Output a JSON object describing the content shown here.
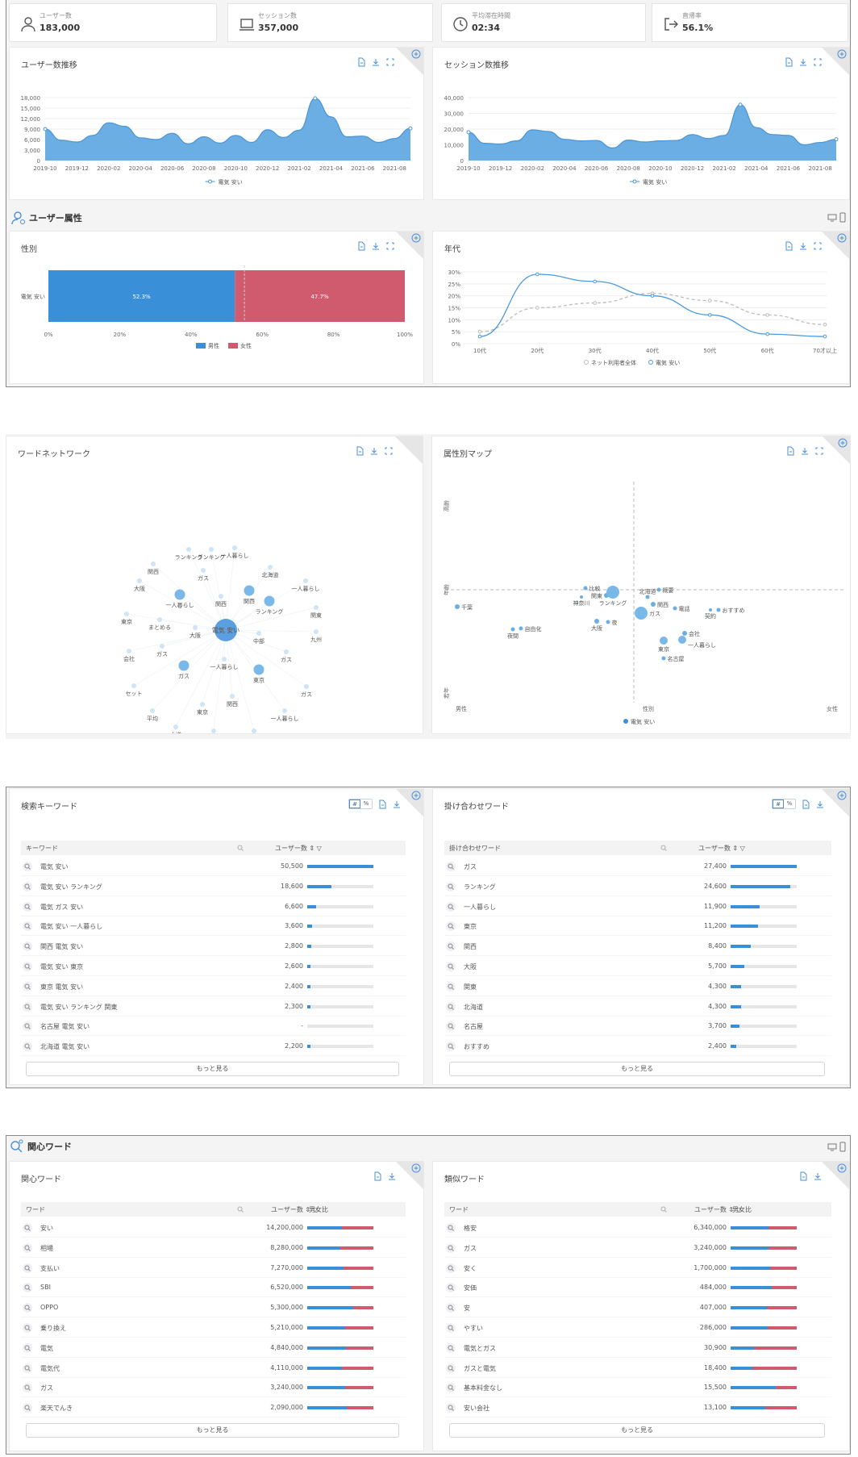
{
  "stats": [
    {
      "label": "ユーザー数",
      "value": "183,000",
      "icon": "user-icon"
    },
    {
      "label": "セッション数",
      "value": "357,000",
      "icon": "laptop-icon"
    },
    {
      "label": "平均滞在時間",
      "value": "02:34",
      "icon": "clock-icon"
    },
    {
      "label": "直帰率",
      "value": "56.1%",
      "icon": "exit-icon"
    }
  ],
  "users_trend": {
    "title": "ユーザー数推移",
    "chart_data": {
      "type": "area",
      "x": [
        "2019-10",
        "2019-11",
        "2019-12",
        "2020-01",
        "2020-02",
        "2020-03",
        "2020-04",
        "2020-05",
        "2020-06",
        "2020-07",
        "2020-08",
        "2020-09",
        "2020-10",
        "2020-11",
        "2020-12",
        "2021-01",
        "2021-02",
        "2021-03",
        "2021-04",
        "2021-05",
        "2021-06",
        "2021-07",
        "2021-08",
        "2021-09"
      ],
      "series": [
        {
          "name": "電気 安い",
          "values": [
            9000,
            5800,
            5300,
            7200,
            10800,
            9800,
            6500,
            6000,
            7800,
            4800,
            6800,
            5000,
            7200,
            5200,
            8800,
            6600,
            8700,
            17800,
            12500,
            6800,
            7000,
            5200,
            6300,
            9200
          ]
        }
      ],
      "ylim": [
        0,
        18000
      ],
      "yticks": [
        "0",
        "3,000",
        "6,000",
        "9,000",
        "12,000",
        "15,000",
        "18,000"
      ],
      "xticks": [
        "2019-10",
        "2019-12",
        "2020-02",
        "2020-04",
        "2020-06",
        "2020-08",
        "2020-10",
        "2020-12",
        "2021-02",
        "2021-04",
        "2021-06",
        "2021-08"
      ]
    }
  },
  "sessions_trend": {
    "title": "セッション数推移",
    "chart_data": {
      "type": "area",
      "x": [
        "2019-10",
        "2019-11",
        "2019-12",
        "2020-01",
        "2020-02",
        "2020-03",
        "2020-04",
        "2020-05",
        "2020-06",
        "2020-07",
        "2020-08",
        "2020-09",
        "2020-10",
        "2020-11",
        "2020-12",
        "2021-01",
        "2021-02",
        "2021-03",
        "2021-04",
        "2021-05",
        "2021-06",
        "2021-07",
        "2021-08",
        "2021-09"
      ],
      "series": [
        {
          "name": "電気 安い",
          "values": [
            18000,
            11000,
            10500,
            12500,
            19500,
            18500,
            13500,
            12500,
            12800,
            8000,
            13000,
            11800,
            12500,
            12800,
            16500,
            14000,
            16000,
            35500,
            21000,
            16500,
            16000,
            10000,
            11500,
            13500
          ]
        }
      ],
      "ylim": [
        0,
        40000
      ],
      "yticks": [
        "0",
        "10,000",
        "20,000",
        "30,000",
        "40,000"
      ],
      "xticks": [
        "2019-10",
        "2019-12",
        "2020-02",
        "2020-04",
        "2020-06",
        "2020-08",
        "2020-10",
        "2020-12",
        "2021-02",
        "2021-04",
        "2021-06",
        "2021-08"
      ]
    }
  },
  "attr_header": "ユーザー属性",
  "gender": {
    "title": "性別",
    "chart_data": {
      "type": "bar",
      "categories": [
        "電気 安い"
      ],
      "series": [
        {
          "name": "男性",
          "values": [
            52.3
          ]
        },
        {
          "name": "女性",
          "values": [
            47.7
          ]
        }
      ],
      "labels": [
        "52.3%",
        "47.7%"
      ],
      "xticks": [
        "0%",
        "20%",
        "40%",
        "60%",
        "80%",
        "100%"
      ],
      "colors": [
        "#3a8fd9",
        "#d05a6e"
      ]
    }
  },
  "age": {
    "title": "年代",
    "chart_data": {
      "type": "line",
      "categories": [
        "10代",
        "20代",
        "30代",
        "40代",
        "50代",
        "60代",
        "70才以上"
      ],
      "series": [
        {
          "name": "ネット利用者全体",
          "values": [
            5,
            15,
            17,
            21,
            18,
            12,
            8
          ]
        },
        {
          "name": "電気 安い",
          "values": [
            3,
            29,
            26,
            20,
            12,
            4,
            3
          ]
        }
      ],
      "ylim": [
        0,
        30
      ],
      "yticks": [
        "0%",
        "5%",
        "10%",
        "15%",
        "20%",
        "25%",
        "30%"
      ]
    }
  },
  "word_network": {
    "title": "ワードネットワーク",
    "center": "電気 安い",
    "nodes": [
      {
        "t": "ランキング",
        "s": 1
      },
      {
        "t": "ランキング",
        "s": 1
      },
      {
        "t": "一人暮らし",
        "s": 1
      },
      {
        "t": "関西",
        "s": 1
      },
      {
        "t": "ガス",
        "s": 1
      },
      {
        "t": "北海道",
        "s": 1
      },
      {
        "t": "大阪",
        "s": 1
      },
      {
        "t": "一人暮らし",
        "s": 1
      },
      {
        "t": "一人暮らし",
        "s": 3
      },
      {
        "t": "関西",
        "s": 1
      },
      {
        "t": "関西",
        "s": 3
      },
      {
        "t": "ランキング",
        "s": 3
      },
      {
        "t": "関東",
        "s": 1
      },
      {
        "t": "東京",
        "s": 1
      },
      {
        "t": "まとめる",
        "s": 1
      },
      {
        "t": "大阪",
        "s": 1
      },
      {
        "t": "九州",
        "s": 1
      },
      {
        "t": "中部",
        "s": 1
      },
      {
        "t": "会社",
        "s": 1
      },
      {
        "t": "ガス",
        "s": 1
      },
      {
        "t": "ガス",
        "s": 1
      },
      {
        "t": "ガス",
        "s": 3
      },
      {
        "t": "一人暮らし",
        "s": 1
      },
      {
        "t": "東京",
        "s": 3
      },
      {
        "t": "ガス",
        "s": 1
      },
      {
        "t": "セット",
        "s": 1
      },
      {
        "t": "関西",
        "s": 1
      },
      {
        "t": "平均",
        "s": 1
      },
      {
        "t": "東京",
        "s": 1
      },
      {
        "t": "一人暮らし",
        "s": 1
      },
      {
        "t": "水道",
        "s": 1
      },
      {
        "t": "名古屋",
        "s": 1
      },
      {
        "t": "水道",
        "s": 1
      }
    ]
  },
  "attr_map": {
    "title": "属性別マップ",
    "y_top": "高齢",
    "y_mid": "年齢",
    "y_bottom": "若年",
    "x_left": "男性",
    "x_mid": "性別",
    "x_right": "女性",
    "legend": "電気 安い",
    "points": [
      {
        "t": "千葉"
      },
      {
        "t": "比較"
      },
      {
        "t": "関東"
      },
      {
        "t": "神奈川"
      },
      {
        "t": "ランキング"
      },
      {
        "t": "北海道"
      },
      {
        "t": "概要"
      },
      {
        "t": "関西"
      },
      {
        "t": "ガス"
      },
      {
        "t": "電話"
      },
      {
        "t": "おすすめ"
      },
      {
        "t": "契約"
      },
      {
        "t": "大阪"
      },
      {
        "t": "夜"
      },
      {
        "t": "自由化"
      },
      {
        "t": "夜間"
      },
      {
        "t": "会社"
      },
      {
        "t": "東京"
      },
      {
        "t": "一人暮らし"
      },
      {
        "t": "名古屋"
      }
    ]
  },
  "search_kw": {
    "title": "検索キーワード",
    "toggle": [
      "#",
      "%"
    ],
    "col_word": "キーワード",
    "col_users": "ユーザー数",
    "more": "もっと見る",
    "rows": [
      {
        "w": "電気 安い",
        "n": "50,500",
        "v": 50500
      },
      {
        "w": "電気 安い ランキング",
        "n": "18,600",
        "v": 18600
      },
      {
        "w": "電気 ガス 安い",
        "n": "6,600",
        "v": 6600
      },
      {
        "w": "電気 安い 一人暮らし",
        "n": "3,600",
        "v": 3600
      },
      {
        "w": "関西 電気 安い",
        "n": "2,800",
        "v": 2800
      },
      {
        "w": "電気 安い 東京",
        "n": "2,600",
        "v": 2600
      },
      {
        "w": "東京 電気 安い",
        "n": "2,400",
        "v": 2400
      },
      {
        "w": "電気 安い ランキング 関東",
        "n": "2,300",
        "v": 2300
      },
      {
        "w": "名古屋 電気 安い",
        "n": "-",
        "v": 0
      },
      {
        "w": "北海道 電気 安い",
        "n": "2,200",
        "v": 2200
      }
    ]
  },
  "combo_kw": {
    "title": "掛け合わせワード",
    "toggle": [
      "#",
      "%"
    ],
    "col_word": "掛け合わせワード",
    "col_users": "ユーザー数",
    "more": "もっと見る",
    "rows": [
      {
        "w": "ガス",
        "n": "27,400",
        "v": 27400
      },
      {
        "w": "ランキング",
        "n": "24,600",
        "v": 24600
      },
      {
        "w": "一人暮らし",
        "n": "11,900",
        "v": 11900
      },
      {
        "w": "東京",
        "n": "11,200",
        "v": 11200
      },
      {
        "w": "関西",
        "n": "8,400",
        "v": 8400
      },
      {
        "w": "大阪",
        "n": "5,700",
        "v": 5700
      },
      {
        "w": "関東",
        "n": "4,300",
        "v": 4300
      },
      {
        "w": "北海道",
        "n": "4,300",
        "v": 4300
      },
      {
        "w": "名古屋",
        "n": "3,700",
        "v": 3700
      },
      {
        "w": "おすすめ",
        "n": "2,400",
        "v": 2400
      }
    ]
  },
  "interest_header": "関心ワード",
  "interest": {
    "title": "関心ワード",
    "col_word": "ワード",
    "col_users": "ユーザー数",
    "col_ratio": "男女比",
    "more": "もっと見る",
    "rows": [
      {
        "w": "安い",
        "n": "14,200,000",
        "m": 0.52
      },
      {
        "w": "相場",
        "n": "8,280,000",
        "m": 0.5
      },
      {
        "w": "支払い",
        "n": "7,270,000",
        "m": 0.55
      },
      {
        "w": "SBI",
        "n": "6,520,000",
        "m": 0.66
      },
      {
        "w": "OPPO",
        "n": "5,300,000",
        "m": 0.7
      },
      {
        "w": "乗り換え",
        "n": "5,210,000",
        "m": 0.57
      },
      {
        "w": "電気",
        "n": "4,840,000",
        "m": 0.58
      },
      {
        "w": "電気代",
        "n": "4,110,000",
        "m": 0.52
      },
      {
        "w": "ガス",
        "n": "3,240,000",
        "m": 0.57
      },
      {
        "w": "楽天でんき",
        "n": "2,090,000",
        "m": 0.6
      }
    ]
  },
  "similar": {
    "title": "類似ワード",
    "col_word": "ワード",
    "col_users": "ユーザー数",
    "col_ratio": "男女比",
    "more": "もっと見る",
    "rows": [
      {
        "w": "格安",
        "n": "6,340,000",
        "m": 0.57
      },
      {
        "w": "ガス",
        "n": "3,240,000",
        "m": 0.57
      },
      {
        "w": "安く",
        "n": "1,700,000",
        "m": 0.6
      },
      {
        "w": "安価",
        "n": "484,000",
        "m": 0.62
      },
      {
        "w": "安",
        "n": "407,000",
        "m": 0.55
      },
      {
        "w": "やすい",
        "n": "286,000",
        "m": 0.56
      },
      {
        "w": "電気とガス",
        "n": "30,900",
        "m": 0.35
      },
      {
        "w": "ガスと電気",
        "n": "18,400",
        "m": 0.33
      },
      {
        "w": "基本料金なし",
        "n": "15,500",
        "m": 0.68
      },
      {
        "w": "安い会社",
        "n": "13,100",
        "m": 0.52
      }
    ]
  }
}
